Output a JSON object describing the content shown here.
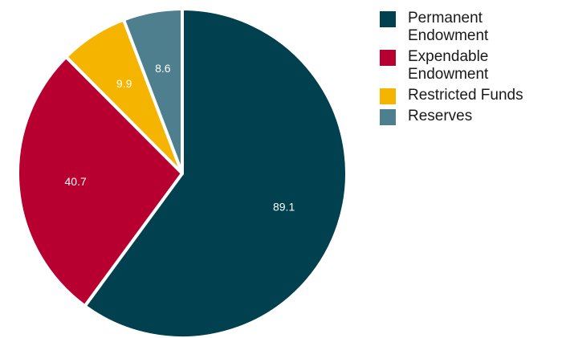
{
  "chart_data": {
    "type": "pie",
    "title": "",
    "legend_position": "right",
    "start_angle_deg": 0,
    "direction": "clockwise",
    "slices": [
      {
        "label": "Permanent Endowment",
        "value": 89.1,
        "color": "#00404f"
      },
      {
        "label": "Expendable Endowment",
        "value": 40.7,
        "color": "#b7002f"
      },
      {
        "label": "Restricted Funds",
        "value": 9.9,
        "color": "#f5b400"
      },
      {
        "label": "Reserves",
        "value": 8.6,
        "color": "#4d7f8f"
      }
    ]
  },
  "legend": {
    "items": [
      {
        "label_lines": [
          "Permanent",
          "Endowment"
        ],
        "color": "#00404f"
      },
      {
        "label_lines": [
          "Expendable",
          "Endowment"
        ],
        "color": "#b7002f"
      },
      {
        "label_lines": [
          "Restricted Funds"
        ],
        "color": "#f5b400"
      },
      {
        "label_lines": [
          "Reserves"
        ],
        "color": "#4d7f8f"
      }
    ]
  }
}
